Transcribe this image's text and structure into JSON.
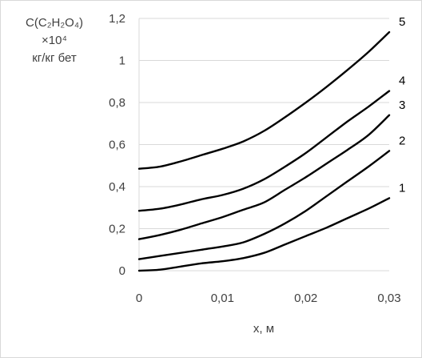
{
  "chart_data": {
    "type": "line",
    "ylabel_lines": [
      "C(C₂H₂O₄)",
      "×10⁴",
      "кг/кг бет"
    ],
    "xlabel": "x, м",
    "xlim": [
      0,
      0.03
    ],
    "ylim": [
      0,
      1.2
    ],
    "x_ticks": [
      "0",
      "0,01",
      "0,02",
      "0,03"
    ],
    "y_ticks": [
      "0",
      "0,2",
      "0,4",
      "0,6",
      "0,8",
      "1",
      "1,2"
    ],
    "grid": "horizontal",
    "x": [
      0,
      0.0025,
      0.005,
      0.0075,
      0.01,
      0.0125,
      0.015,
      0.0175,
      0.02,
      0.0225,
      0.025,
      0.0275,
      0.03
    ],
    "series": [
      {
        "name": "1",
        "values": [
          0.0,
          0.005,
          0.02,
          0.035,
          0.045,
          0.06,
          0.085,
          0.125,
          0.165,
          0.205,
          0.25,
          0.295,
          0.345
        ]
      },
      {
        "name": "2",
        "values": [
          0.055,
          0.07,
          0.085,
          0.1,
          0.115,
          0.135,
          0.175,
          0.225,
          0.285,
          0.355,
          0.425,
          0.495,
          0.57
        ]
      },
      {
        "name": "3",
        "values": [
          0.15,
          0.17,
          0.195,
          0.225,
          0.255,
          0.29,
          0.325,
          0.385,
          0.445,
          0.51,
          0.575,
          0.645,
          0.74
        ]
      },
      {
        "name": "4",
        "values": [
          0.285,
          0.295,
          0.315,
          0.34,
          0.36,
          0.39,
          0.435,
          0.495,
          0.56,
          0.635,
          0.71,
          0.78,
          0.855
        ]
      },
      {
        "name": "5",
        "values": [
          0.485,
          0.495,
          0.52,
          0.55,
          0.58,
          0.615,
          0.665,
          0.73,
          0.8,
          0.875,
          0.955,
          1.04,
          1.135
        ]
      }
    ]
  }
}
